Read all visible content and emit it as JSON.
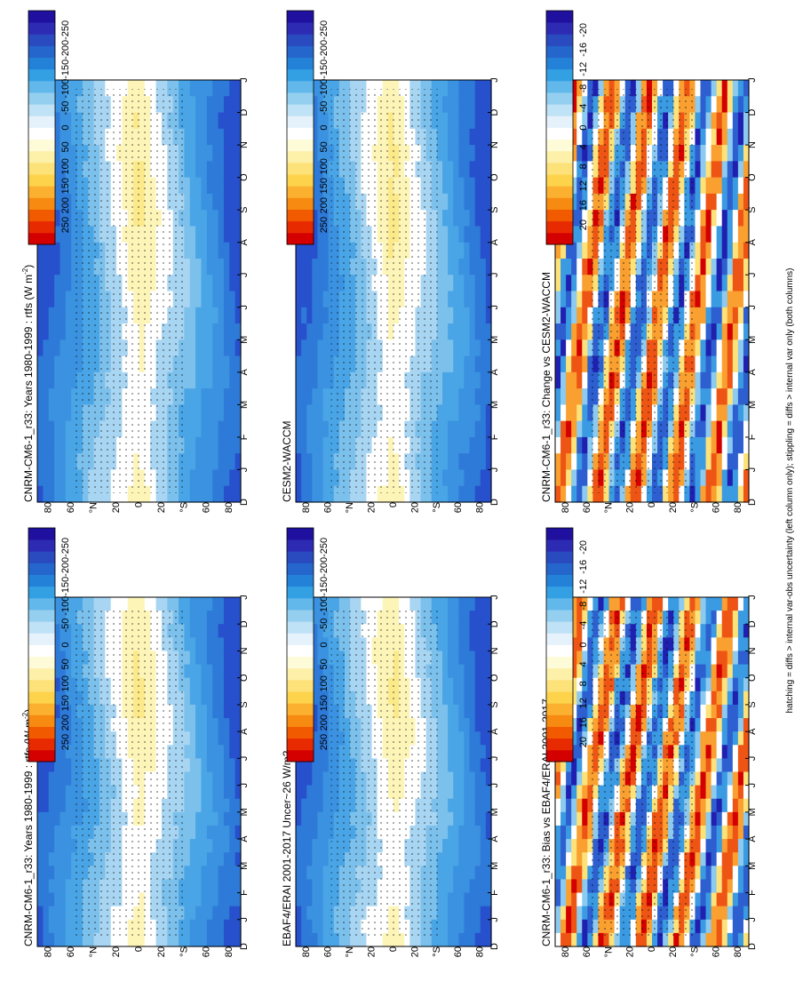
{
  "figure": {
    "footnote": "hatching = diffs > internal var-obs uncertainty (left column only); stippling = diffs > internal var only (both columns)"
  },
  "chart_data": [
    {
      "type": "heatmap",
      "title": "CNRM-CM6-1_r33: Years 1980-1999 : rtfs (W m",
      "title_sup": "-2",
      "title_suffix": ")",
      "x_ticks": [
        "D",
        "J",
        "F",
        "M",
        "A",
        "M",
        "J",
        "J",
        "A",
        "S",
        "O",
        "N",
        "D",
        "J"
      ],
      "y_ticks": [
        "80",
        "60",
        "°N",
        "20",
        "0",
        "20",
        "°S",
        "60",
        "80"
      ],
      "colorbar": [
        "250",
        "200",
        "150",
        "100",
        "50",
        "0",
        "-50",
        "-100",
        "-150",
        "-200",
        "-250"
      ],
      "field": "mean"
    },
    {
      "type": "heatmap",
      "title": "CNRM-CM6-1_r33: Years 1980-1999 : rtfs (W m",
      "title_sup": "-2",
      "title_suffix": ")",
      "x_ticks": [
        "D",
        "J",
        "F",
        "M",
        "A",
        "M",
        "J",
        "J",
        "A",
        "S",
        "O",
        "N",
        "D",
        "J"
      ],
      "y_ticks": [
        "80",
        "60",
        "°N",
        "20",
        "0",
        "20",
        "°S",
        "60",
        "80"
      ],
      "colorbar": [
        "250",
        "200",
        "150",
        "100",
        "50",
        "0",
        "-50",
        "-100",
        "-150",
        "-200",
        "-250"
      ],
      "field": "mean"
    },
    {
      "type": "heatmap",
      "title": "EBAF4/ERAI 2001-2017 Uncer~26 W/m2",
      "x_ticks": [
        "D",
        "J",
        "F",
        "M",
        "A",
        "M",
        "J",
        "J",
        "A",
        "S",
        "O",
        "N",
        "D",
        "J"
      ],
      "y_ticks": [
        "80",
        "60",
        "°N",
        "20",
        "0",
        "20",
        "°S",
        "60",
        "80"
      ],
      "colorbar": [
        "250",
        "200",
        "150",
        "100",
        "50",
        "0",
        "-50",
        "-100",
        "-150",
        "-200",
        "-250"
      ],
      "field": "mean"
    },
    {
      "type": "heatmap",
      "title": "CESM2-WACCM",
      "x_ticks": [
        "D",
        "J",
        "F",
        "M",
        "A",
        "M",
        "J",
        "J",
        "A",
        "S",
        "O",
        "N",
        "D",
        "J"
      ],
      "y_ticks": [
        "80",
        "60",
        "°N",
        "20",
        "0",
        "20",
        "°S",
        "60",
        "80"
      ],
      "colorbar": [
        "250",
        "200",
        "150",
        "100",
        "50",
        "0",
        "-50",
        "-100",
        "-150",
        "-200",
        "-250"
      ],
      "field": "mean"
    },
    {
      "type": "heatmap",
      "title": "CNRM-CM6-1_r33: Bias vs EBAF4/ERAI 2001-2017",
      "x_ticks": [
        "D",
        "J",
        "F",
        "M",
        "A",
        "M",
        "J",
        "J",
        "A",
        "S",
        "O",
        "N",
        "D",
        "J"
      ],
      "y_ticks": [
        "80",
        "60",
        "°N",
        "20",
        "0",
        "20",
        "°S",
        "60",
        "80"
      ],
      "colorbar": [
        "20",
        "16",
        "12",
        "8",
        "4",
        "0",
        "-4",
        "-8",
        "-12",
        "-16",
        "-20"
      ],
      "field": "diff"
    },
    {
      "type": "heatmap",
      "title": "CNRM-CM6-1_r33: Change vs CESM2-WACCM",
      "x_ticks": [
        "D",
        "J",
        "F",
        "M",
        "A",
        "M",
        "J",
        "J",
        "A",
        "S",
        "O",
        "N",
        "D",
        "J"
      ],
      "y_ticks": [
        "80",
        "60",
        "°N",
        "20",
        "0",
        "20",
        "°S",
        "60",
        "80"
      ],
      "colorbar": [
        "20",
        "16",
        "12",
        "8",
        "4",
        "0",
        "-4",
        "-8",
        "-12",
        "-16",
        "-20"
      ],
      "field": "diff"
    }
  ]
}
